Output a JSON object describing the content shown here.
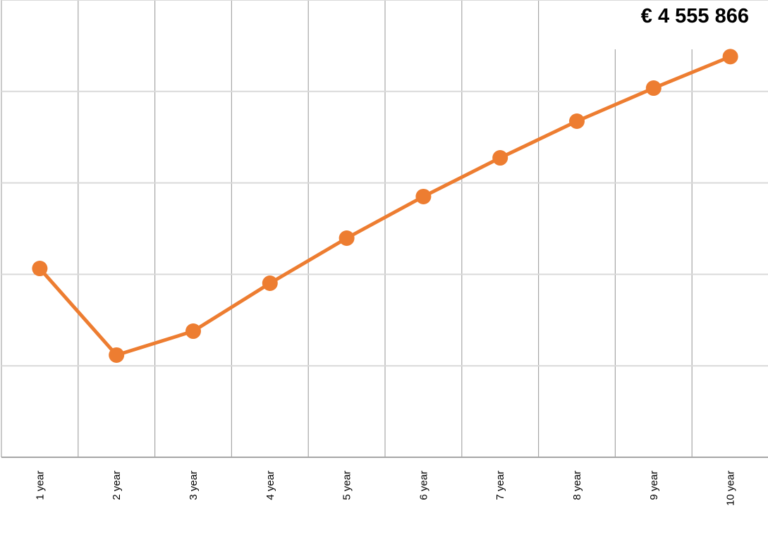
{
  "chart_data": {
    "type": "line",
    "categories": [
      "1 year",
      "2 year",
      "3 year",
      "4 year",
      "5 year",
      "6 year",
      "7 year",
      "8 year",
      "9 year",
      "10 year"
    ],
    "series": [
      {
        "color": "#ed7d31",
        "values": [
          2147000,
          1162000,
          1434000,
          1979000,
          2492000,
          2965000,
          3405000,
          3822000,
          4198000,
          4555866
        ],
        "value_labels": [
          null,
          null,
          null,
          null,
          null,
          null,
          null,
          null,
          null,
          "€ 4 555 866"
        ]
      }
    ],
    "ylim": [
      0,
      5200000
    ],
    "yticks": [
      0,
      1040000,
      2080000,
      3120000,
      4160000,
      5200000
    ],
    "grid": true
  }
}
